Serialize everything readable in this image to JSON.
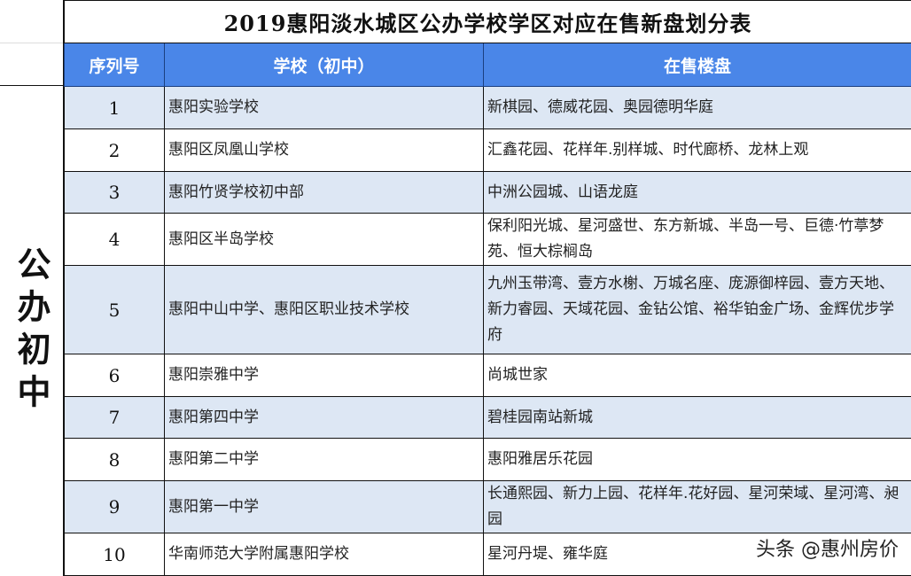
{
  "title": "2019惠阳淡水城区公办学校学区对应在售新盘划分表",
  "category": "公办初中",
  "headers": [
    "序列号",
    "学校（初中）",
    "在售楼盘"
  ],
  "rows": [
    {
      "no": "1",
      "school": "惠阳实验学校",
      "estates": "新棋园、德威花园、奥园德明华庭"
    },
    {
      "no": "2",
      "school": "惠阳区凤凰山学校",
      "estates": "汇鑫花园、花样年.别样城、时代廊桥、龙林上观"
    },
    {
      "no": "3",
      "school": "惠阳竹贤学校初中部",
      "estates": "中洲公园城、山语龙庭"
    },
    {
      "no": "4",
      "school": "惠阳区半岛学校",
      "estates": "保利阳光城、星河盛世、东方新城、半岛一号、巨德·竹葶梦苑、恒大棕榈岛"
    },
    {
      "no": "5",
      "school": "惠阳中山中学、惠阳区职业技术学校",
      "estates": "九州玉带湾、壹方水榭、万城名座、庞源御梓园、壹方天地、新力睿园、天域花园、金钻公馆、裕华铂金广场、金辉优步学府"
    },
    {
      "no": "6",
      "school": "惠阳崇雅中学",
      "estates": "尚城世家"
    },
    {
      "no": "7",
      "school": "惠阳第四中学",
      "estates": "碧桂园南站新城"
    },
    {
      "no": "8",
      "school": "惠阳第二中学",
      "estates": "惠阳雅居乐花园"
    },
    {
      "no": "9",
      "school": "惠阳第一中学",
      "estates": "长通熙园、新力上园、花样年.花好园、星河荣域、星河湾、昶园"
    },
    {
      "no": "10",
      "school": "华南师范大学附属惠阳学校",
      "estates": "星河丹堤、雍华庭"
    }
  ],
  "watermark": "头条 @惠州房价",
  "colors": {
    "header_bg": "#4a86e8",
    "odd_row_bg": "#dde7f4"
  }
}
